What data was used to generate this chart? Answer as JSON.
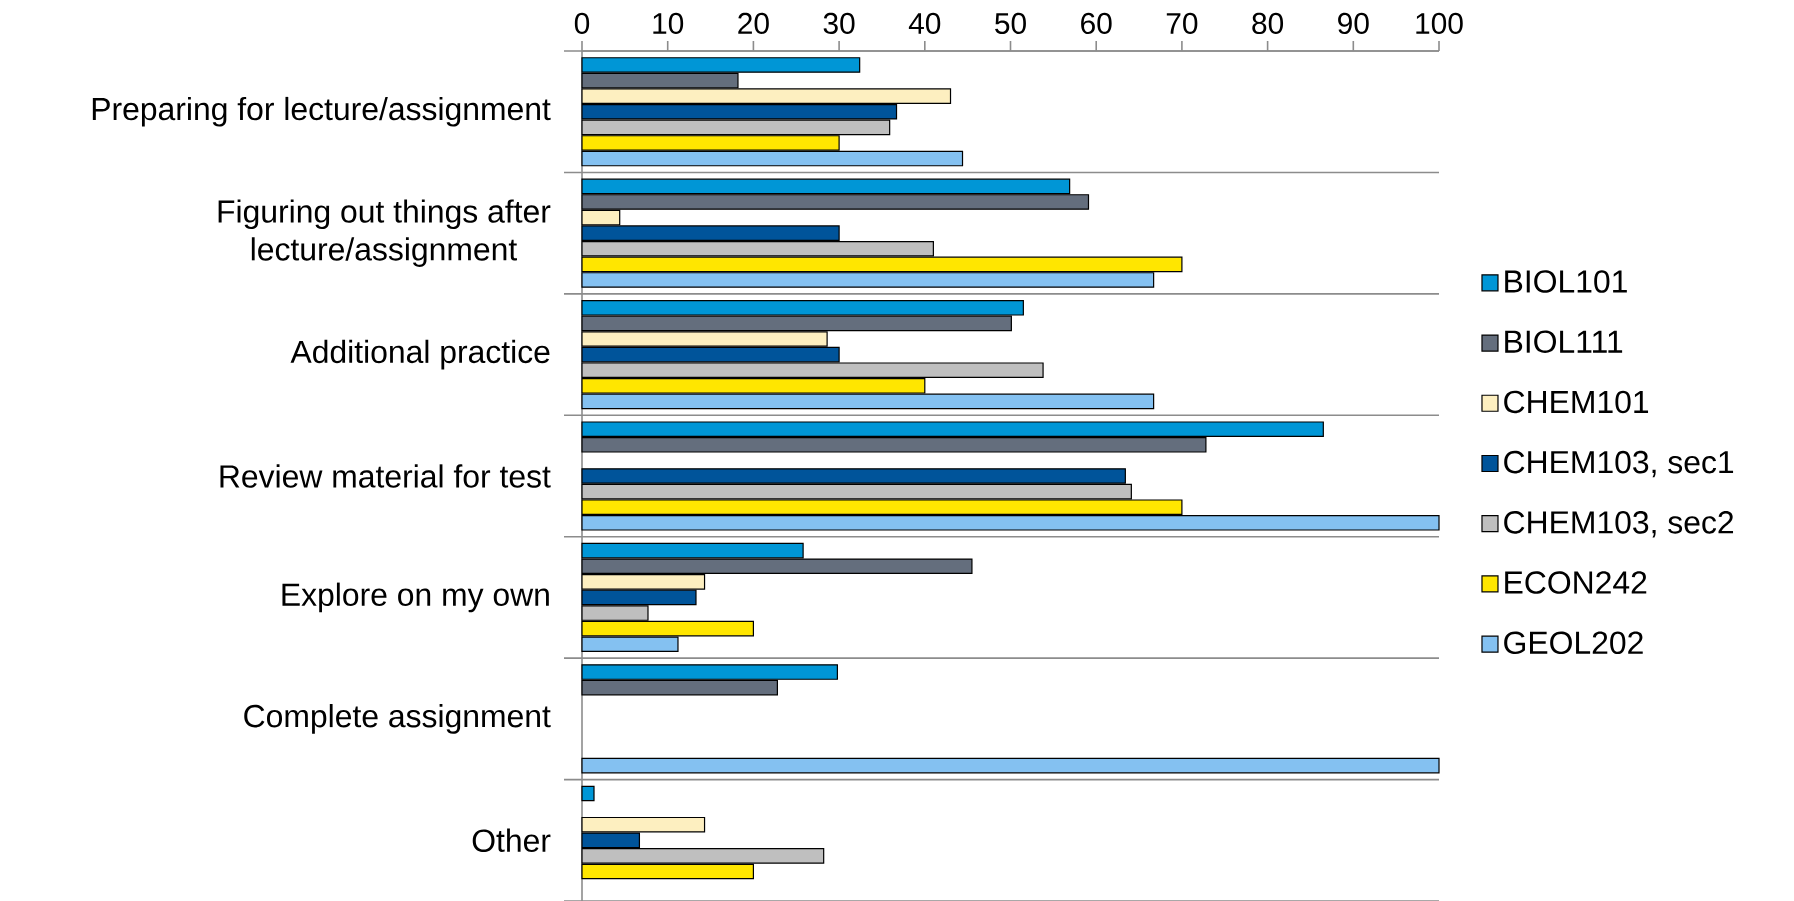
{
  "chart_data": {
    "type": "bar",
    "orientation": "horizontal",
    "categories": [
      "Preparing for lecture/assignment",
      "Figuring out things after lecture/assignment",
      "Additional practice",
      "Review material for test",
      "Explore on my own",
      "Complete assignment",
      "Other"
    ],
    "series": [
      {
        "name": "BIOL101",
        "color": "#0096d6",
        "values": [
          32.4,
          56.9,
          51.5,
          86.5,
          25.8,
          29.8,
          1.4
        ]
      },
      {
        "name": "BIOL111",
        "color": "#646e7d",
        "values": [
          18.2,
          59.1,
          50.1,
          72.8,
          45.5,
          22.8,
          null
        ]
      },
      {
        "name": "CHEM101",
        "color": "#fdefc0",
        "values": [
          43,
          4.4,
          28.6,
          null,
          14.3,
          null,
          14.3
        ]
      },
      {
        "name": "CHEM103, sec1",
        "color": "#00549a",
        "values": [
          36.7,
          30,
          30,
          63.4,
          13.3,
          null,
          6.7
        ]
      },
      {
        "name": "CHEM103, sec2",
        "color": "#bfbfbf",
        "values": [
          35.9,
          41,
          53.8,
          64.1,
          7.7,
          null,
          28.2
        ]
      },
      {
        "name": "ECON242",
        "color": "#ffe600",
        "values": [
          30,
          70,
          40,
          70,
          20,
          null,
          20
        ]
      },
      {
        "name": "GEOL202",
        "color": "#84c1f1",
        "values": [
          44.4,
          66.7,
          66.7,
          100,
          11.2,
          100,
          null
        ]
      }
    ],
    "xlim": [
      0,
      100
    ],
    "xticks": [
      0,
      10,
      20,
      30,
      40,
      50,
      60,
      70,
      80,
      90,
      100
    ],
    "grid": "y",
    "legend": "right"
  }
}
